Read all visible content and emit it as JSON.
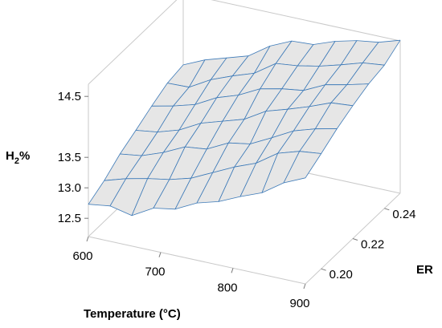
{
  "chart_data": {
    "type": "surface",
    "title": "",
    "xlabel": "Temperature (°C)",
    "ylabel": "ER",
    "zlabel_main": "H",
    "zlabel_sub": "2",
    "zlabel_suffix": "%",
    "xlim": [
      600,
      900
    ],
    "ylim": [
      0.19,
      0.25
    ],
    "zlim": [
      12.2,
      14.7
    ],
    "x_ticks": [
      {
        "value": 600,
        "label": "600"
      },
      {
        "value": 700,
        "label": "700"
      },
      {
        "value": 800,
        "label": "800"
      },
      {
        "value": 900,
        "label": "900"
      }
    ],
    "y_ticks": [
      {
        "value": 0.2,
        "label": "0.20"
      },
      {
        "value": 0.22,
        "label": "0.22"
      },
      {
        "value": 0.24,
        "label": "0.24"
      }
    ],
    "z_ticks": [
      {
        "value": 12.5,
        "label": "12.5"
      },
      {
        "value": 13.0,
        "label": "13.0"
      },
      {
        "value": 13.5,
        "label": "13.5"
      },
      {
        "value": 14.5,
        "label": "14.5"
      }
    ],
    "surface_color": "#e6e6e6",
    "mesh_color": "#3d7ab8",
    "x_grid": [
      600,
      630,
      660,
      690,
      720,
      750,
      780,
      810,
      840,
      870,
      900
    ],
    "y_grid": [
      0.19,
      0.2,
      0.21,
      0.22,
      0.23,
      0.24,
      0.25
    ],
    "z": [
      [
        12.73,
        12.78,
        12.7,
        12.9,
        12.96,
        13.14,
        13.24,
        13.4,
        13.54,
        13.78,
        13.94
      ],
      [
        12.87,
        12.98,
        13.06,
        13.12,
        13.22,
        13.39,
        13.56,
        13.7,
        13.94,
        14.05,
        14.09
      ],
      [
        13.06,
        13.11,
        13.24,
        13.41,
        13.45,
        13.63,
        13.69,
        13.87,
        14.06,
        14.17,
        14.25
      ],
      [
        13.2,
        13.25,
        13.36,
        13.55,
        13.66,
        13.77,
        13.98,
        14.09,
        14.21,
        14.35,
        14.38
      ],
      [
        13.35,
        13.43,
        13.53,
        13.72,
        13.84,
        14.02,
        14.1,
        14.15,
        14.32,
        14.4,
        14.49
      ],
      [
        13.48,
        13.49,
        13.69,
        13.83,
        13.95,
        14.19,
        14.23,
        14.3,
        14.4,
        14.51,
        14.55
      ],
      [
        13.53,
        13.69,
        13.8,
        13.91,
        14.15,
        14.31,
        14.33,
        14.46,
        14.55,
        14.6,
        14.71
      ]
    ]
  }
}
